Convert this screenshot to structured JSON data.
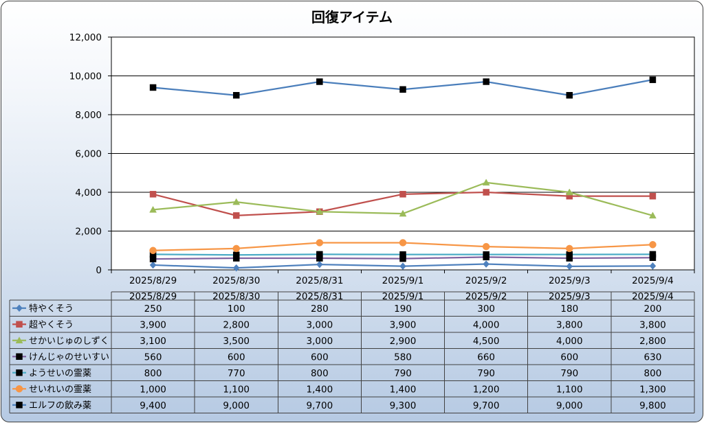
{
  "chart_data": {
    "type": "line",
    "title": "回復アイテム",
    "categories": [
      "2025/8/29",
      "2025/8/30",
      "2025/8/31",
      "2025/9/1",
      "2025/9/2",
      "2025/9/3",
      "2025/9/4"
    ],
    "ylim": [
      0,
      12000
    ],
    "yticks": [
      0,
      2000,
      4000,
      6000,
      8000,
      10000,
      12000
    ],
    "ytick_labels": [
      "0",
      "2,000",
      "4,000",
      "6,000",
      "8,000",
      "10,000",
      "12,000"
    ],
    "grid": true,
    "legend": "bottom",
    "data_table": true,
    "series": [
      {
        "name": "特やくそう",
        "values": [
          250,
          100,
          280,
          190,
          300,
          180,
          200
        ],
        "display": [
          "250",
          "100",
          "280",
          "190",
          "300",
          "180",
          "200"
        ],
        "line_color": "#4F81BD",
        "marker": "diamond",
        "marker_color": "#4F81BD"
      },
      {
        "name": "超やくそう",
        "values": [
          3900,
          2800,
          3000,
          3900,
          4000,
          3800,
          3800
        ],
        "display": [
          "3,900",
          "2,800",
          "3,000",
          "3,900",
          "4,000",
          "3,800",
          "3,800"
        ],
        "line_color": "#C0504D",
        "marker": "square",
        "marker_color": "#C0504D"
      },
      {
        "name": "せかいじゅのしずく",
        "values": [
          3100,
          3500,
          3000,
          2900,
          4500,
          4000,
          2800
        ],
        "display": [
          "3,100",
          "3,500",
          "3,000",
          "2,900",
          "4,500",
          "4,000",
          "2,800"
        ],
        "line_color": "#9BBB59",
        "marker": "triangle",
        "marker_color": "#9BBB59"
      },
      {
        "name": "けんじゃのせいすい",
        "values": [
          560,
          600,
          600,
          580,
          660,
          600,
          630
        ],
        "display": [
          "560",
          "600",
          "600",
          "580",
          "660",
          "600",
          "630"
        ],
        "line_color": "#8064A2",
        "marker": "square",
        "marker_color": "#000000"
      },
      {
        "name": "ようせいの霊薬",
        "values": [
          800,
          770,
          800,
          790,
          790,
          790,
          800
        ],
        "display": [
          "800",
          "770",
          "800",
          "790",
          "790",
          "790",
          "800"
        ],
        "line_color": "#4BACC6",
        "marker": "square",
        "marker_color": "#000000"
      },
      {
        "name": "せいれいの霊薬",
        "values": [
          1000,
          1100,
          1400,
          1400,
          1200,
          1100,
          1300
        ],
        "display": [
          "1,000",
          "1,100",
          "1,400",
          "1,400",
          "1,200",
          "1,100",
          "1,300"
        ],
        "line_color": "#F79646",
        "marker": "circle",
        "marker_color": "#F79646"
      },
      {
        "name": "エルフの飲み薬",
        "values": [
          9400,
          9000,
          9700,
          9300,
          9700,
          9000,
          9800
        ],
        "display": [
          "9,400",
          "9,000",
          "9,700",
          "9,300",
          "9,700",
          "9,000",
          "9,800"
        ],
        "line_color": "#4A7EBB",
        "marker": "square",
        "marker_color": "#000000"
      }
    ]
  }
}
